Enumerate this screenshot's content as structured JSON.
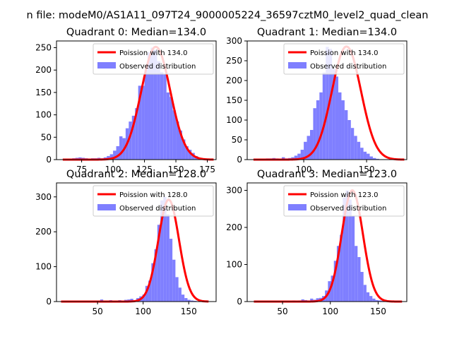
{
  "figure": {
    "suptitle": "n file: modeM0/AS1A11_097T24_9000005224_36597cztM0_level2_quad_clean"
  },
  "colors": {
    "poisson": "#ff0000",
    "observed": "#7f7fff",
    "axis": "#000000",
    "background": "#ffffff"
  },
  "chart_data": [
    {
      "type": "bar",
      "title": "Quadrant 0: Median=134.0",
      "xlim": [
        55,
        182
      ],
      "ylim": [
        0,
        265
      ],
      "xticks": [
        75,
        100,
        125,
        150,
        175
      ],
      "yticks": [
        0,
        50,
        100,
        150,
        200,
        250
      ],
      "legend": [
        "Poission with 134.0",
        "Observed distribution"
      ],
      "legend_position": "upper right",
      "poisson_mean": 134.0,
      "poisson_peak": 252,
      "bins": {
        "start": 60,
        "width": 2.5
      },
      "values": [
        2,
        1,
        2,
        3,
        4,
        5,
        4,
        3,
        2,
        3,
        3,
        4,
        3,
        5,
        8,
        12,
        20,
        30,
        52,
        48,
        70,
        85,
        98,
        115,
        165,
        165,
        200,
        240,
        250,
        245,
        220,
        195,
        190,
        150,
        140,
        110,
        85,
        65,
        45,
        30,
        22,
        15,
        8,
        4,
        2,
        2,
        1,
        1
      ]
    },
    {
      "type": "bar",
      "title": "Quadrant 1: Median=134.0",
      "xlim": [
        55,
        182
      ],
      "ylim": [
        0,
        300
      ],
      "xticks": [
        100,
        150
      ],
      "yticks": [
        0,
        50,
        100,
        150,
        200,
        250,
        300
      ],
      "legend": [
        "Poission with 134.0",
        "Observed distribution"
      ],
      "legend_position": "upper right",
      "poisson_mean": 134.0,
      "poisson_peak": 286,
      "bins": {
        "start": 60,
        "width": 2.5
      },
      "values": [
        2,
        2,
        1,
        2,
        3,
        3,
        4,
        3,
        2,
        6,
        3,
        4,
        6,
        10,
        15,
        25,
        45,
        60,
        75,
        130,
        150,
        170,
        220,
        285,
        280,
        230,
        210,
        170,
        150,
        125,
        100,
        80,
        60,
        45,
        30,
        20,
        15,
        8,
        4,
        2,
        1,
        1,
        1,
        0,
        0,
        0,
        0,
        0
      ]
    },
    {
      "type": "bar",
      "title": "Quadrant 2: Median=128.0",
      "xlim": [
        5,
        180
      ],
      "ylim": [
        0,
        340
      ],
      "xticks": [
        50,
        100,
        150
      ],
      "yticks": [
        0,
        100,
        200,
        300
      ],
      "legend": [
        "Poission with 128.0",
        "Observed distribution"
      ],
      "legend_position": "upper right",
      "poisson_mean": 128.0,
      "poisson_peak": 292,
      "bins": {
        "start": 10,
        "width": 3.3
      },
      "values": [
        1,
        2,
        2,
        1,
        2,
        1,
        2,
        3,
        2,
        2,
        1,
        3,
        2,
        6,
        3,
        2,
        4,
        3,
        2,
        4,
        3,
        5,
        6,
        8,
        4,
        10,
        15,
        20,
        45,
        60,
        110,
        150,
        220,
        290,
        300,
        250,
        180,
        120,
        70,
        40,
        20,
        10,
        5,
        3,
        2,
        1,
        1,
        1,
        1
      ]
    },
    {
      "type": "bar",
      "title": "Quadrant 3: Median=123.0",
      "xlim": [
        13,
        180
      ],
      "ylim": [
        0,
        320
      ],
      "xticks": [
        50,
        100,
        150
      ],
      "yticks": [
        0,
        100,
        200,
        300
      ],
      "legend": [
        "Poission with 123.0",
        "Observed distribution"
      ],
      "legend_position": "upper right",
      "poisson_mean": 123.0,
      "poisson_peak": 300,
      "bins": {
        "start": 20,
        "width": 3.1
      },
      "values": [
        1,
        1,
        2,
        1,
        2,
        2,
        1,
        2,
        2,
        1,
        1,
        2,
        2,
        3,
        2,
        3,
        6,
        4,
        3,
        8,
        5,
        9,
        10,
        15,
        30,
        55,
        70,
        110,
        150,
        180,
        280,
        300,
        275,
        230,
        150,
        120,
        80,
        45,
        25,
        15,
        8,
        4,
        3,
        2,
        1,
        1,
        1,
        0,
        0,
        0
      ]
    }
  ]
}
